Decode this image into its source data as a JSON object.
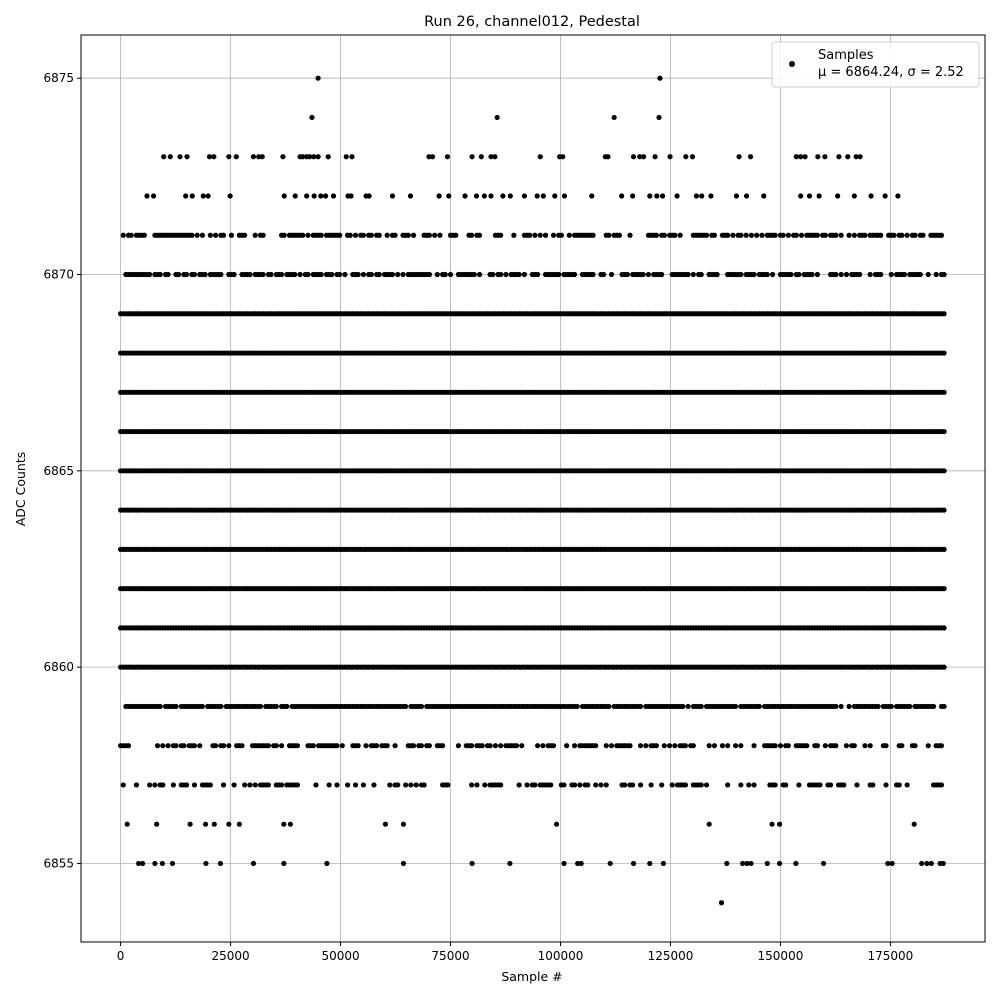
{
  "chart_data": {
    "type": "scatter",
    "title": "Run 26, channel012, Pedestal",
    "xlabel": "Sample #",
    "ylabel": "ADC Counts",
    "xlim": [
      -9000,
      196500
    ],
    "ylim": [
      6853.0,
      6876.1
    ],
    "xticks": [
      0,
      25000,
      50000,
      75000,
      100000,
      125000,
      150000,
      175000
    ],
    "yticks": [
      6855,
      6860,
      6865,
      6870,
      6875
    ],
    "grid": true,
    "legend_position": "top-right",
    "marker_color": "#000000",
    "series": [
      {
        "name": "Samples",
        "legend_stats": "μ = 6864.24, σ = 2.52",
        "x_range": [
          0,
          187500
        ],
        "dense_levels": [
          6857,
          6858,
          6859,
          6860,
          6861,
          6862,
          6863,
          6864,
          6865,
          6866,
          6867,
          6868,
          6869,
          6870,
          6871
        ],
        "level_density": {
          "6857": 0.42,
          "6858": 0.5,
          "6859": 0.9,
          "6860": 1.0,
          "6861": 1.0,
          "6862": 1.0,
          "6863": 1.0,
          "6864": 1.0,
          "6865": 1.0,
          "6866": 1.0,
          "6867": 1.0,
          "6868": 1.0,
          "6869": 1.0,
          "6870": 0.65,
          "6871": 0.6
        },
        "sparse_points": [
          [
            44900,
            6875
          ],
          [
            122600,
            6875
          ],
          [
            43500,
            6874
          ],
          [
            85600,
            6874
          ],
          [
            112200,
            6874
          ],
          [
            122400,
            6874
          ],
          [
            9800,
            6873
          ],
          [
            11300,
            6873
          ],
          [
            13500,
            6873
          ],
          [
            15100,
            6873
          ],
          [
            20200,
            6873
          ],
          [
            21200,
            6873
          ],
          [
            24600,
            6873
          ],
          [
            26300,
            6873
          ],
          [
            30200,
            6873
          ],
          [
            31400,
            6873
          ],
          [
            32200,
            6873
          ],
          [
            36900,
            6873
          ],
          [
            40800,
            6873
          ],
          [
            41400,
            6873
          ],
          [
            42300,
            6873
          ],
          [
            43000,
            6873
          ],
          [
            43900,
            6873
          ],
          [
            44900,
            6873
          ],
          [
            47200,
            6873
          ],
          [
            51300,
            6873
          ],
          [
            52600,
            6873
          ],
          [
            70100,
            6873
          ],
          [
            70900,
            6873
          ],
          [
            74300,
            6873
          ],
          [
            79900,
            6873
          ],
          [
            82000,
            6873
          ],
          [
            84200,
            6873
          ],
          [
            85100,
            6873
          ],
          [
            95400,
            6873
          ],
          [
            99800,
            6873
          ],
          [
            100500,
            6873
          ],
          [
            110200,
            6873
          ],
          [
            110800,
            6873
          ],
          [
            116600,
            6873
          ],
          [
            118000,
            6873
          ],
          [
            118900,
            6873
          ],
          [
            121500,
            6873
          ],
          [
            124900,
            6873
          ],
          [
            128500,
            6873
          ],
          [
            130000,
            6873
          ],
          [
            140600,
            6873
          ],
          [
            143200,
            6873
          ],
          [
            153600,
            6873
          ],
          [
            154600,
            6873
          ],
          [
            155600,
            6873
          ],
          [
            158500,
            6873
          ],
          [
            160100,
            6873
          ],
          [
            163300,
            6873
          ],
          [
            165300,
            6873
          ],
          [
            167200,
            6873
          ],
          [
            168100,
            6873
          ],
          [
            6000,
            6872
          ],
          [
            7500,
            6872
          ],
          [
            14800,
            6872
          ],
          [
            16300,
            6872
          ],
          [
            18800,
            6872
          ],
          [
            19900,
            6872
          ],
          [
            24900,
            6872
          ],
          [
            37200,
            6872
          ],
          [
            39700,
            6872
          ],
          [
            42300,
            6872
          ],
          [
            44000,
            6872
          ],
          [
            45500,
            6872
          ],
          [
            46600,
            6872
          ],
          [
            48400,
            6872
          ],
          [
            51700,
            6872
          ],
          [
            52400,
            6872
          ],
          [
            55800,
            6872
          ],
          [
            56500,
            6872
          ],
          [
            61800,
            6872
          ],
          [
            65900,
            6872
          ],
          [
            72400,
            6872
          ],
          [
            74600,
            6872
          ],
          [
            78300,
            6872
          ],
          [
            80900,
            6872
          ],
          [
            82700,
            6872
          ],
          [
            84200,
            6872
          ],
          [
            86900,
            6872
          ],
          [
            88600,
            6872
          ],
          [
            91800,
            6872
          ],
          [
            94700,
            6872
          ],
          [
            96100,
            6872
          ],
          [
            98700,
            6872
          ],
          [
            100900,
            6872
          ],
          [
            107100,
            6872
          ],
          [
            113900,
            6872
          ],
          [
            116400,
            6872
          ],
          [
            120300,
            6872
          ],
          [
            121900,
            6872
          ],
          [
            123200,
            6872
          ],
          [
            126500,
            6872
          ],
          [
            130900,
            6872
          ],
          [
            132100,
            6872
          ],
          [
            134200,
            6872
          ],
          [
            140000,
            6872
          ],
          [
            142300,
            6872
          ],
          [
            146200,
            6872
          ],
          [
            154600,
            6872
          ],
          [
            156600,
            6872
          ],
          [
            158800,
            6872
          ],
          [
            163000,
            6872
          ],
          [
            166800,
            6872
          ],
          [
            170600,
            6872
          ],
          [
            173800,
            6872
          ],
          [
            176700,
            6872
          ],
          [
            1500,
            6856
          ],
          [
            8200,
            6856
          ],
          [
            15800,
            6856
          ],
          [
            19300,
            6856
          ],
          [
            21300,
            6856
          ],
          [
            24600,
            6856
          ],
          [
            27000,
            6856
          ],
          [
            37100,
            6856
          ],
          [
            38600,
            6856
          ],
          [
            60200,
            6856
          ],
          [
            64300,
            6856
          ],
          [
            99100,
            6856
          ],
          [
            133800,
            6856
          ],
          [
            148100,
            6856
          ],
          [
            149800,
            6856
          ],
          [
            180400,
            6856
          ],
          [
            4100,
            6855
          ],
          [
            5000,
            6855
          ],
          [
            7800,
            6855
          ],
          [
            9500,
            6855
          ],
          [
            11800,
            6855
          ],
          [
            19400,
            6855
          ],
          [
            22700,
            6855
          ],
          [
            30200,
            6855
          ],
          [
            37100,
            6855
          ],
          [
            46900,
            6855
          ],
          [
            64300,
            6855
          ],
          [
            79900,
            6855
          ],
          [
            88500,
            6855
          ],
          [
            100800,
            6855
          ],
          [
            103900,
            6855
          ],
          [
            104700,
            6855
          ],
          [
            111300,
            6855
          ],
          [
            116600,
            6855
          ],
          [
            120300,
            6855
          ],
          [
            123400,
            6855
          ],
          [
            137800,
            6855
          ],
          [
            141400,
            6855
          ],
          [
            142400,
            6855
          ],
          [
            143300,
            6855
          ],
          [
            147000,
            6855
          ],
          [
            149800,
            6855
          ],
          [
            153500,
            6855
          ],
          [
            159800,
            6855
          ],
          [
            174400,
            6855
          ],
          [
            175400,
            6855
          ],
          [
            182100,
            6855
          ],
          [
            183300,
            6855
          ],
          [
            184300,
            6855
          ],
          [
            186300,
            6855
          ],
          [
            187000,
            6855
          ],
          [
            136600,
            6854
          ]
        ]
      }
    ]
  }
}
